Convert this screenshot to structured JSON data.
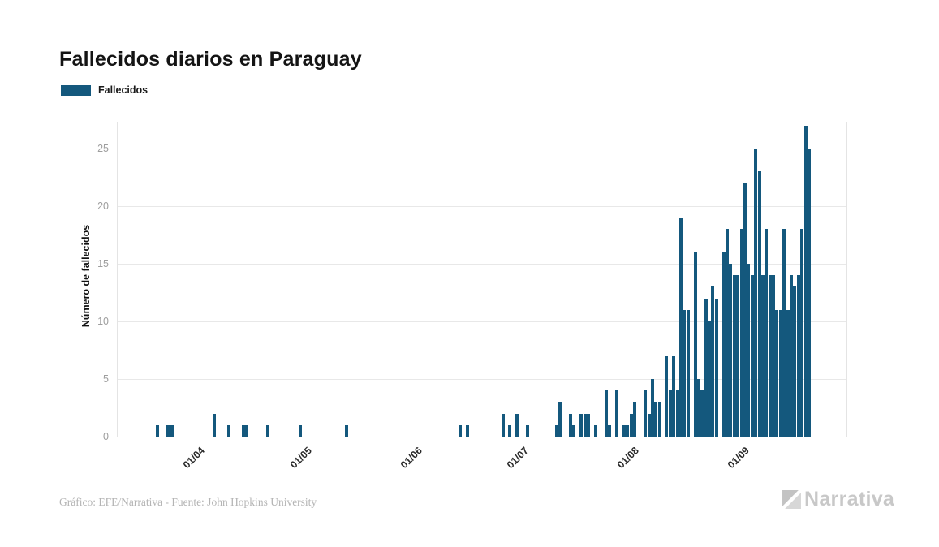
{
  "title": "Fallecidos diarios en Paraguay",
  "legend": {
    "label": "Fallecidos",
    "color": "#14587D"
  },
  "y_axis_title": "Número de fallecidos",
  "footer": {
    "credit": "Gráfico: EFE/Narrativa - Fuente: John Hopkins University",
    "brand": "Narrativa"
  },
  "colors": {
    "bar": "#14587D",
    "grid": "#e8e8e8",
    "tick_text": "#9e9e9e",
    "brand_gray": "#c8c8c8"
  },
  "chart_data": {
    "type": "bar",
    "title": "Fallecidos diarios en Paraguay",
    "series_name": "Fallecidos",
    "xlabel": "",
    "ylabel": "Número de fallecidos",
    "ylim": [
      0,
      27
    ],
    "y_ticks": [
      0,
      5,
      10,
      15,
      20,
      25
    ],
    "grid": "horizontal",
    "legend_position": "top-left",
    "start_date": "2020-03-20",
    "end_date": "2020-09-21",
    "x_ticks": [
      {
        "label": "01/04",
        "date": "2020-04-01"
      },
      {
        "label": "01/05",
        "date": "2020-05-01"
      },
      {
        "label": "01/06",
        "date": "2020-06-01"
      },
      {
        "label": "01/07",
        "date": "2020-07-01"
      },
      {
        "label": "01/08",
        "date": "2020-08-01"
      },
      {
        "label": "01/09",
        "date": "2020-09-01"
      }
    ],
    "note": "days not listed in points have value 0",
    "points": [
      {
        "date": "2020-03-22",
        "value": 1
      },
      {
        "date": "2020-03-25",
        "value": 1
      },
      {
        "date": "2020-03-26",
        "value": 1
      },
      {
        "date": "2020-04-07",
        "value": 2
      },
      {
        "date": "2020-04-11",
        "value": 1
      },
      {
        "date": "2020-04-15",
        "value": 1
      },
      {
        "date": "2020-04-16",
        "value": 1
      },
      {
        "date": "2020-04-22",
        "value": 1
      },
      {
        "date": "2020-05-01",
        "value": 1
      },
      {
        "date": "2020-05-14",
        "value": 1
      },
      {
        "date": "2020-06-15",
        "value": 1
      },
      {
        "date": "2020-06-17",
        "value": 1
      },
      {
        "date": "2020-06-27",
        "value": 2
      },
      {
        "date": "2020-06-29",
        "value": 1
      },
      {
        "date": "2020-07-01",
        "value": 2
      },
      {
        "date": "2020-07-04",
        "value": 1
      },
      {
        "date": "2020-07-12",
        "value": 1
      },
      {
        "date": "2020-07-13",
        "value": 3
      },
      {
        "date": "2020-07-16",
        "value": 2
      },
      {
        "date": "2020-07-17",
        "value": 1
      },
      {
        "date": "2020-07-19",
        "value": 2
      },
      {
        "date": "2020-07-20",
        "value": 2
      },
      {
        "date": "2020-07-21",
        "value": 2
      },
      {
        "date": "2020-07-23",
        "value": 1
      },
      {
        "date": "2020-07-26",
        "value": 4
      },
      {
        "date": "2020-07-27",
        "value": 1
      },
      {
        "date": "2020-07-29",
        "value": 4
      },
      {
        "date": "2020-07-31",
        "value": 1
      },
      {
        "date": "2020-08-01",
        "value": 1
      },
      {
        "date": "2020-08-02",
        "value": 2
      },
      {
        "date": "2020-08-03",
        "value": 3
      },
      {
        "date": "2020-08-06",
        "value": 4
      },
      {
        "date": "2020-08-07",
        "value": 2
      },
      {
        "date": "2020-08-08",
        "value": 5
      },
      {
        "date": "2020-08-09",
        "value": 3
      },
      {
        "date": "2020-08-10",
        "value": 3
      },
      {
        "date": "2020-08-12",
        "value": 7
      },
      {
        "date": "2020-08-13",
        "value": 4
      },
      {
        "date": "2020-08-14",
        "value": 7
      },
      {
        "date": "2020-08-15",
        "value": 4
      },
      {
        "date": "2020-08-16",
        "value": 19
      },
      {
        "date": "2020-08-17",
        "value": 11
      },
      {
        "date": "2020-08-18",
        "value": 11
      },
      {
        "date": "2020-08-20",
        "value": 16
      },
      {
        "date": "2020-08-21",
        "value": 5
      },
      {
        "date": "2020-08-22",
        "value": 4
      },
      {
        "date": "2020-08-23",
        "value": 12
      },
      {
        "date": "2020-08-24",
        "value": 10
      },
      {
        "date": "2020-08-25",
        "value": 13
      },
      {
        "date": "2020-08-26",
        "value": 12
      },
      {
        "date": "2020-08-28",
        "value": 16
      },
      {
        "date": "2020-08-29",
        "value": 18
      },
      {
        "date": "2020-08-30",
        "value": 15
      },
      {
        "date": "2020-08-31",
        "value": 14
      },
      {
        "date": "2020-09-01",
        "value": 14
      },
      {
        "date": "2020-09-02",
        "value": 18
      },
      {
        "date": "2020-09-03",
        "value": 22
      },
      {
        "date": "2020-09-04",
        "value": 15
      },
      {
        "date": "2020-09-05",
        "value": 14
      },
      {
        "date": "2020-09-06",
        "value": 25
      },
      {
        "date": "2020-09-07",
        "value": 23
      },
      {
        "date": "2020-09-08",
        "value": 14
      },
      {
        "date": "2020-09-09",
        "value": 18
      },
      {
        "date": "2020-09-10",
        "value": 14
      },
      {
        "date": "2020-09-11",
        "value": 14
      },
      {
        "date": "2020-09-12",
        "value": 11
      },
      {
        "date": "2020-09-13",
        "value": 11
      },
      {
        "date": "2020-09-14",
        "value": 18
      },
      {
        "date": "2020-09-15",
        "value": 11
      },
      {
        "date": "2020-09-16",
        "value": 14
      },
      {
        "date": "2020-09-17",
        "value": 13
      },
      {
        "date": "2020-09-18",
        "value": 14
      },
      {
        "date": "2020-09-19",
        "value": 18
      },
      {
        "date": "2020-09-20",
        "value": 27
      },
      {
        "date": "2020-09-21",
        "value": 25
      }
    ]
  }
}
